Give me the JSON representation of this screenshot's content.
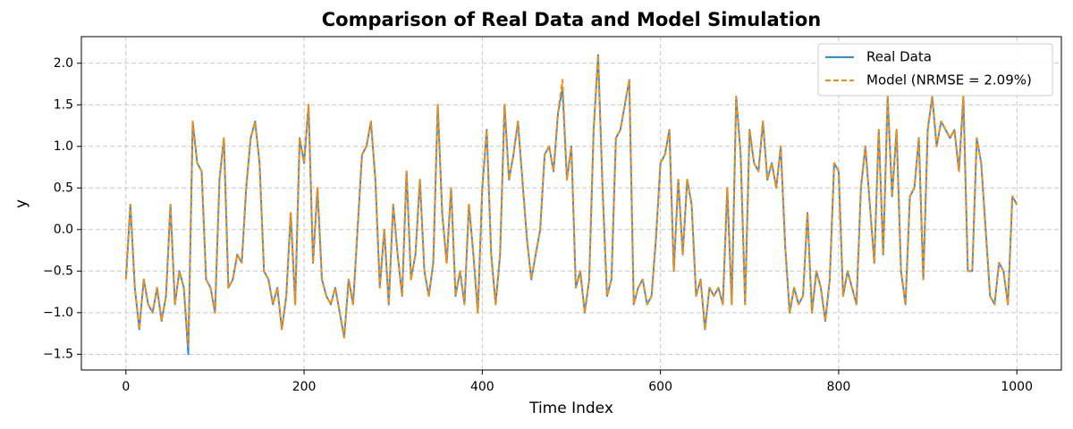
{
  "chart_data": {
    "type": "line",
    "title": "Comparison of Real Data and Model Simulation",
    "xlabel": "Time Index",
    "ylabel": "y",
    "x": [
      0,
      5,
      10,
      15,
      20,
      25,
      30,
      35,
      40,
      45,
      50,
      55,
      60,
      65,
      70,
      75,
      80,
      85,
      90,
      95,
      100,
      105,
      110,
      115,
      120,
      125,
      130,
      135,
      140,
      145,
      150,
      155,
      160,
      165,
      170,
      175,
      180,
      185,
      190,
      195,
      200,
      205,
      210,
      215,
      220,
      225,
      230,
      235,
      240,
      245,
      250,
      255,
      260,
      265,
      270,
      275,
      280,
      285,
      290,
      295,
      300,
      305,
      310,
      315,
      320,
      325,
      330,
      335,
      340,
      345,
      350,
      355,
      360,
      365,
      370,
      375,
      380,
      385,
      390,
      395,
      400,
      405,
      410,
      415,
      420,
      425,
      430,
      435,
      440,
      445,
      450,
      455,
      460,
      465,
      470,
      475,
      480,
      485,
      490,
      495,
      500,
      505,
      510,
      515,
      520,
      525,
      530,
      535,
      540,
      545,
      550,
      555,
      560,
      565,
      570,
      575,
      580,
      585,
      590,
      595,
      600,
      605,
      610,
      615,
      620,
      625,
      630,
      635,
      640,
      645,
      650,
      655,
      660,
      665,
      670,
      675,
      680,
      685,
      690,
      695,
      700,
      705,
      710,
      715,
      720,
      725,
      730,
      735,
      740,
      745,
      750,
      755,
      760,
      765,
      770,
      775,
      780,
      785,
      790,
      795,
      800,
      805,
      810,
      815,
      820,
      825,
      830,
      835,
      840,
      845,
      850,
      855,
      860,
      865,
      870,
      875,
      880,
      885,
      890,
      895,
      900,
      905,
      910,
      915,
      920,
      925,
      930,
      935,
      940,
      945,
      950,
      955,
      960,
      965,
      970,
      975,
      980,
      985,
      990,
      995,
      1000
    ],
    "series": [
      {
        "name": "Real Data",
        "color": "#1e90ff",
        "dash": "solid",
        "values": [
          -0.6,
          0.3,
          -0.7,
          -1.2,
          -0.6,
          -0.9,
          -1.0,
          -0.7,
          -1.1,
          -0.8,
          0.3,
          -0.9,
          -0.5,
          -0.7,
          -1.5,
          1.3,
          0.8,
          0.7,
          -0.6,
          -0.7,
          -1.0,
          0.6,
          1.1,
          -0.7,
          -0.6,
          -0.3,
          -0.4,
          0.5,
          1.1,
          1.3,
          0.8,
          -0.5,
          -0.6,
          -0.9,
          -0.7,
          -1.2,
          -0.8,
          0.2,
          -0.9,
          1.1,
          0.8,
          1.5,
          -0.4,
          0.5,
          -0.6,
          -0.8,
          -0.9,
          -0.7,
          -1.0,
          -1.3,
          -0.6,
          -0.9,
          0.0,
          0.9,
          1.0,
          1.3,
          0.6,
          -0.7,
          0.0,
          -0.9,
          0.3,
          -0.3,
          -0.8,
          0.7,
          -0.6,
          -0.3,
          0.6,
          -0.5,
          -0.8,
          -0.4,
          1.5,
          0.2,
          -0.4,
          0.5,
          -0.8,
          -0.5,
          -0.9,
          0.3,
          -0.3,
          -1.0,
          0.5,
          1.2,
          -0.3,
          -0.9,
          -0.3,
          1.5,
          0.6,
          0.9,
          1.3,
          0.6,
          -0.1,
          -0.6,
          -0.3,
          0.0,
          0.9,
          1.0,
          0.7,
          1.4,
          1.7,
          0.6,
          1.0,
          -0.7,
          -0.5,
          -1.0,
          -0.6,
          1.2,
          2.1,
          0.5,
          -0.8,
          -0.6,
          1.1,
          1.2,
          1.5,
          1.8,
          -0.9,
          -0.7,
          -0.6,
          -0.9,
          -0.8,
          -0.1,
          0.8,
          0.9,
          1.2,
          -0.5,
          0.6,
          -0.3,
          0.6,
          0.3,
          -0.8,
          -0.6,
          -1.2,
          -0.7,
          -0.8,
          -0.7,
          -0.9,
          0.5,
          -0.9,
          1.6,
          0.9,
          -0.9,
          1.2,
          0.8,
          0.7,
          1.3,
          0.6,
          0.8,
          0.5,
          1.0,
          -0.2,
          -1.0,
          -0.7,
          -0.9,
          -0.8,
          0.2,
          -1.0,
          -0.5,
          -0.7,
          -1.1,
          -0.6,
          0.8,
          0.7,
          -0.8,
          -0.5,
          -0.7,
          -0.9,
          0.5,
          1.0,
          0.3,
          -0.4,
          1.2,
          -0.3,
          1.6,
          0.4,
          1.2,
          -0.5,
          -0.9,
          0.4,
          0.5,
          1.1,
          -0.6,
          1.2,
          1.6,
          1.0,
          1.3,
          1.2,
          1.1,
          1.2,
          0.7,
          1.6,
          -0.5,
          -0.5,
          1.1,
          0.8,
          0.0,
          -0.8,
          -0.9,
          -0.4,
          -0.5,
          -0.9,
          0.4,
          0.3
        ]
      },
      {
        "name": "Model (NRMSE = 2.09%)",
        "color": "#ff8c00",
        "dash": "dashed",
        "values": [
          -0.6,
          0.3,
          -0.7,
          -1.2,
          -0.6,
          -0.9,
          -1.0,
          -0.7,
          -1.1,
          -0.8,
          0.3,
          -0.9,
          -0.5,
          -0.7,
          -1.4,
          1.3,
          0.8,
          0.7,
          -0.6,
          -0.7,
          -1.0,
          0.6,
          1.1,
          -0.7,
          -0.6,
          -0.3,
          -0.4,
          0.5,
          1.1,
          1.3,
          0.8,
          -0.5,
          -0.6,
          -0.9,
          -0.7,
          -1.2,
          -0.8,
          0.2,
          -0.9,
          1.1,
          0.8,
          1.5,
          -0.4,
          0.5,
          -0.6,
          -0.8,
          -0.9,
          -0.7,
          -1.0,
          -1.3,
          -0.6,
          -0.9,
          0.0,
          0.9,
          1.0,
          1.3,
          0.6,
          -0.7,
          0.0,
          -0.9,
          0.3,
          -0.3,
          -0.8,
          0.7,
          -0.6,
          -0.3,
          0.6,
          -0.5,
          -0.8,
          -0.4,
          1.5,
          0.2,
          -0.4,
          0.5,
          -0.8,
          -0.5,
          -0.9,
          0.3,
          -0.3,
          -1.0,
          0.5,
          1.2,
          -0.3,
          -0.9,
          -0.3,
          1.5,
          0.6,
          0.9,
          1.3,
          0.6,
          -0.1,
          -0.6,
          -0.3,
          0.0,
          0.9,
          1.0,
          0.7,
          1.4,
          1.8,
          0.6,
          1.0,
          -0.7,
          -0.5,
          -1.0,
          -0.6,
          1.2,
          2.1,
          0.5,
          -0.8,
          -0.6,
          1.1,
          1.2,
          1.5,
          1.8,
          -0.9,
          -0.7,
          -0.6,
          -0.9,
          -0.8,
          -0.1,
          0.8,
          0.9,
          1.2,
          -0.5,
          0.6,
          -0.3,
          0.6,
          0.3,
          -0.8,
          -0.6,
          -1.2,
          -0.7,
          -0.8,
          -0.7,
          -0.9,
          0.5,
          -0.9,
          1.6,
          0.9,
          -0.9,
          1.2,
          0.8,
          0.7,
          1.3,
          0.6,
          0.8,
          0.5,
          1.0,
          -0.2,
          -1.0,
          -0.7,
          -0.9,
          -0.8,
          0.2,
          -1.0,
          -0.5,
          -0.7,
          -1.1,
          -0.6,
          0.8,
          0.7,
          -0.8,
          -0.5,
          -0.7,
          -0.9,
          0.5,
          1.0,
          0.3,
          -0.4,
          1.2,
          -0.3,
          1.6,
          0.4,
          1.2,
          -0.5,
          -0.9,
          0.4,
          0.5,
          1.1,
          -0.6,
          1.2,
          1.6,
          1.0,
          1.3,
          1.2,
          1.1,
          1.2,
          0.7,
          1.6,
          -0.5,
          -0.5,
          1.1,
          0.8,
          0.0,
          -0.8,
          -0.9,
          -0.4,
          -0.5,
          -0.9,
          0.4,
          0.3
        ]
      }
    ],
    "xlim": [
      -50,
      1050
    ],
    "xticks": [
      0,
      200,
      400,
      600,
      800,
      1000
    ],
    "ylim": [
      -1.69,
      2.32
    ],
    "yticks": [
      {
        "value": -1.5,
        "label": "−1.5"
      },
      {
        "value": -1.0,
        "label": "−1.0"
      },
      {
        "value": -0.5,
        "label": "−0.5"
      },
      {
        "value": 0,
        "label": "0.0"
      },
      0.5,
      {
        "value": 1.0,
        "label": "1.0"
      },
      1.5,
      {
        "value": 2.0,
        "label": "2.0"
      }
    ],
    "grid": true,
    "legend": "upper right"
  }
}
